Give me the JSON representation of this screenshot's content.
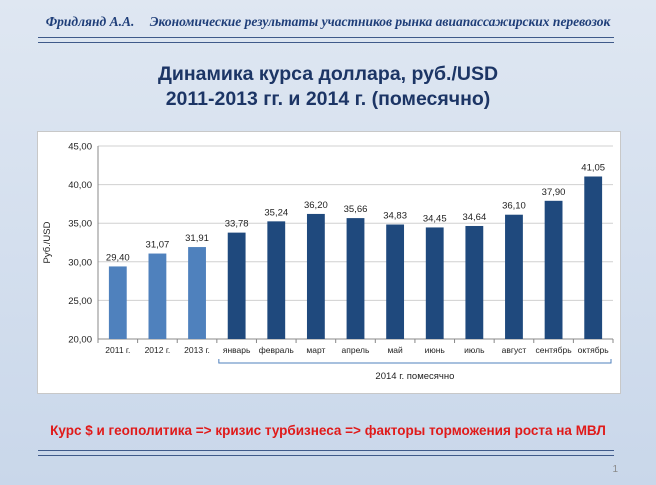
{
  "header": {
    "author": "Фридлянд А.А.",
    "subtitle": "Экономические результаты участников рынка авиапассажирских перевозок"
  },
  "title": {
    "line1": "Динамика курса доллара, руб./USD",
    "line2": "2011-2013 гг. и 2014 г. (помесячно)"
  },
  "colors": {
    "annual_bar": "#4f81bd",
    "monthly_bar": "#1f497d",
    "accent_text": "#1c3565",
    "footer_text": "#e01a1a"
  },
  "chart_data": {
    "type": "bar",
    "title": "",
    "xlabel": "",
    "ylabel": "Руб./USD",
    "ylim": [
      20,
      45
    ],
    "yticks": [
      "20,00",
      "25,00",
      "30,00",
      "35,00",
      "40,00",
      "45,00"
    ],
    "grid": true,
    "categories": [
      "2011 г.",
      "2012 г.",
      "2013 г.",
      "январь",
      "февраль",
      "март",
      "апрель",
      "май",
      "июнь",
      "июль",
      "август",
      "сентябрь",
      "октябрь"
    ],
    "values": [
      29.4,
      31.07,
      31.91,
      33.78,
      35.24,
      36.2,
      35.66,
      34.83,
      34.45,
      34.64,
      36.1,
      37.9,
      41.05
    ],
    "value_labels": [
      "29,40",
      "31,07",
      "31,91",
      "33,78",
      "35,24",
      "36,20",
      "35,66",
      "34,83",
      "34,45",
      "34,64",
      "36,10",
      "37,90",
      "41,05"
    ],
    "annual_count": 3,
    "group_label": "2014 г. помесячно"
  },
  "footer": {
    "note": "Курс $ и геополитика  => кризис турбизнеса   => факторы торможения роста на МВЛ",
    "page_number": "1"
  }
}
